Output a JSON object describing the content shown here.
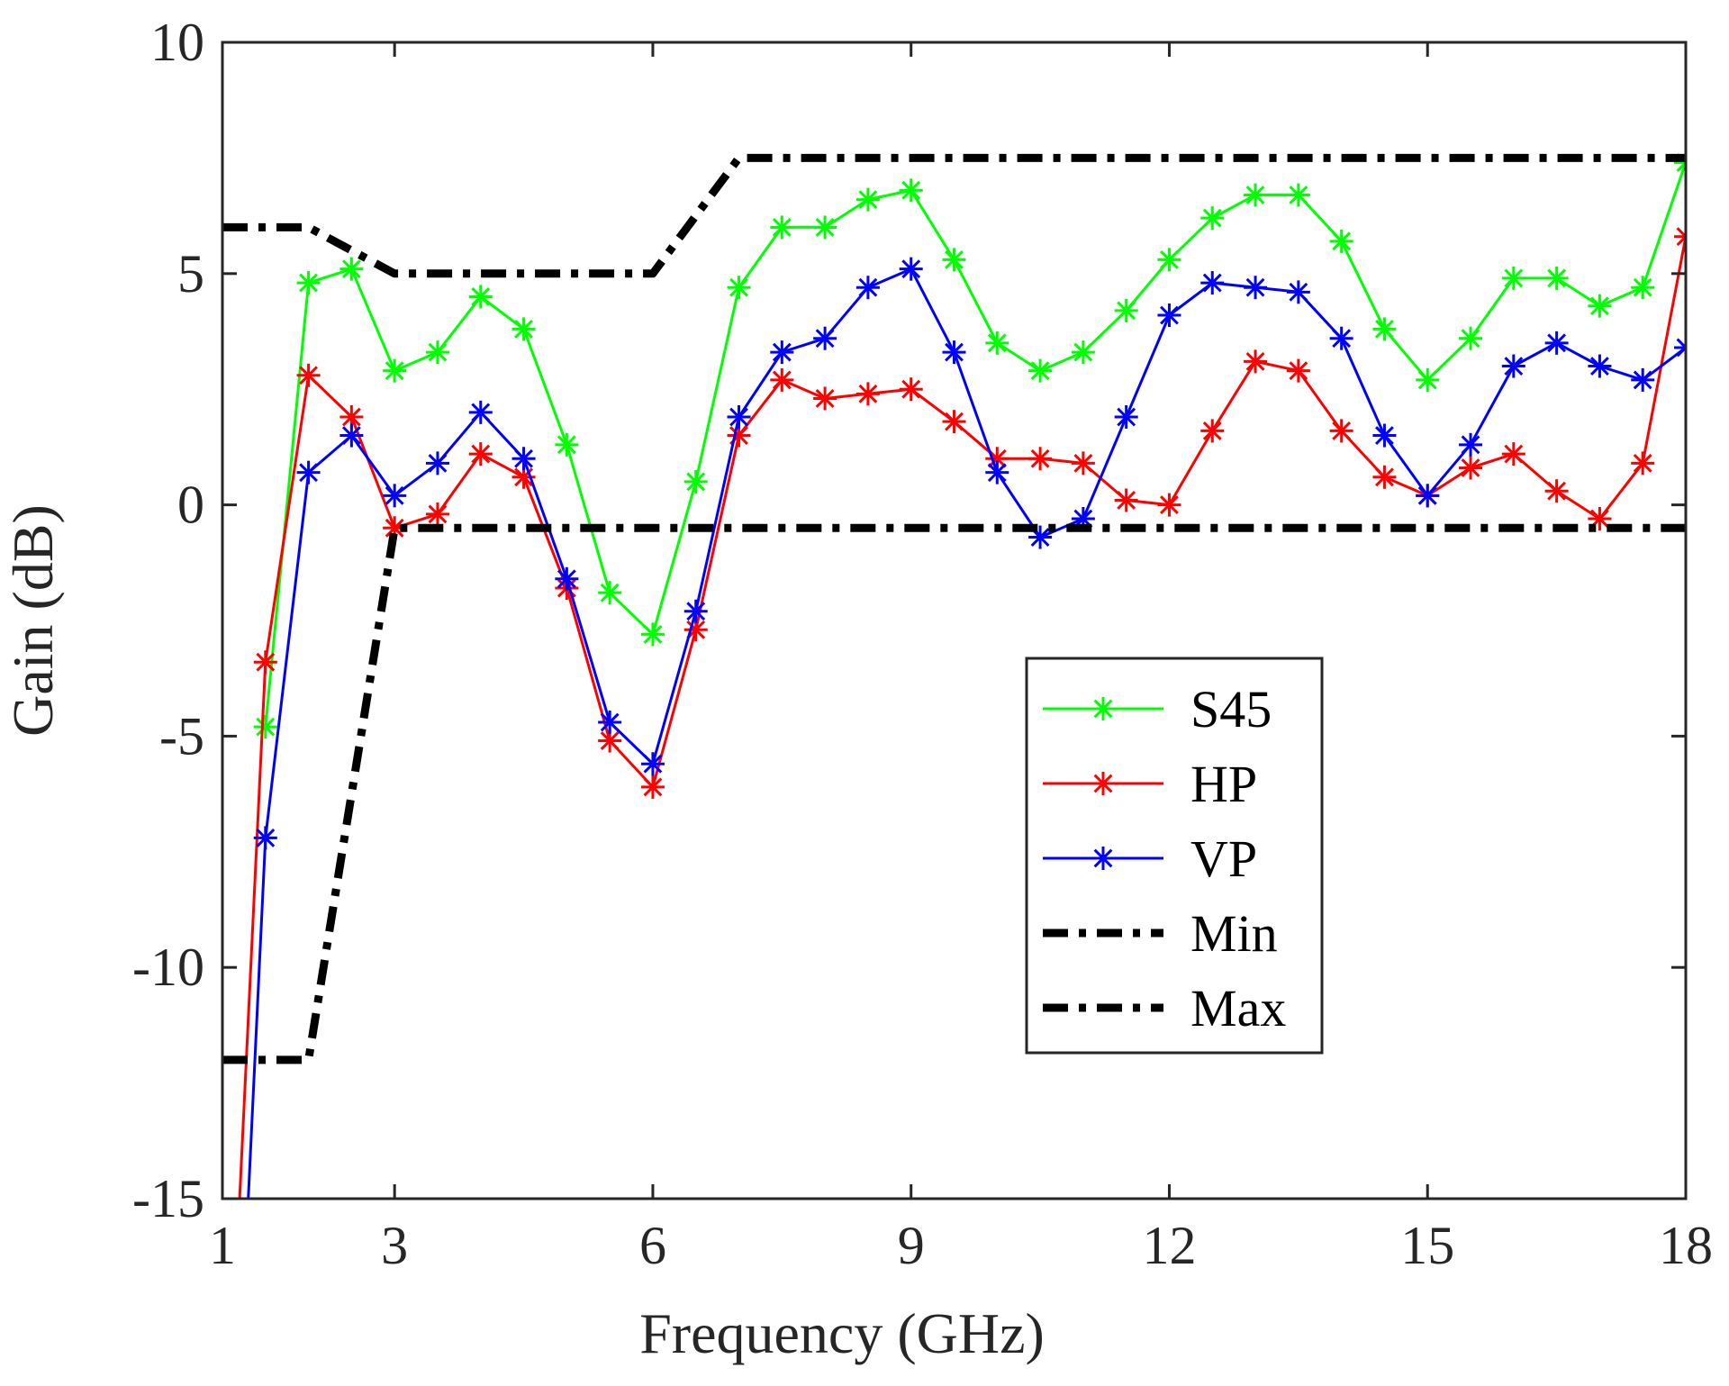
{
  "chart_data": {
    "type": "line",
    "title": "",
    "xlabel": "Frequency (GHz)",
    "ylabel": "Gain (dB)",
    "xlim": [
      1,
      18
    ],
    "ylim": [
      -15,
      10
    ],
    "xticks": [
      "1",
      "3",
      "6",
      "9",
      "12",
      "15",
      "18"
    ],
    "yticks": [
      "10",
      "5",
      "0",
      "-5",
      "-10",
      "-15"
    ],
    "grid": false,
    "legend": "center-right",
    "series": [
      {
        "name": "S45",
        "color": "#00ff00",
        "style": "solid",
        "marker": "asterisk",
        "x": [
          1.5,
          2,
          2.5,
          3,
          3.5,
          4,
          4.5,
          5,
          5.5,
          6,
          6.5,
          7,
          7.5,
          8,
          8.5,
          9,
          9.5,
          10,
          10.5,
          11,
          11.5,
          12,
          12.5,
          13,
          13.5,
          14,
          14.5,
          15,
          15.5,
          16,
          16.5,
          17,
          17.5,
          18
        ],
        "y": [
          -4.8,
          4.8,
          5.1,
          2.9,
          3.3,
          4.5,
          3.8,
          1.3,
          -1.9,
          -2.8,
          0.5,
          4.7,
          6.0,
          6.0,
          6.6,
          6.8,
          5.3,
          3.5,
          2.9,
          3.3,
          4.2,
          5.3,
          6.2,
          6.7,
          6.7,
          5.7,
          3.8,
          2.7,
          3.6,
          4.9,
          4.9,
          4.3,
          4.7,
          7.4
        ]
      },
      {
        "name": "HP",
        "color": "#ff0000",
        "style": "solid",
        "marker": "asterisk",
        "x": [
          1.2,
          1.5,
          2,
          2.5,
          3,
          3.5,
          4,
          4.5,
          5,
          5.5,
          6,
          6.5,
          7,
          7.5,
          8,
          8.5,
          9,
          9.5,
          10,
          10.5,
          11,
          11.5,
          12,
          12.5,
          13,
          13.5,
          14,
          14.5,
          15,
          15.5,
          16,
          16.5,
          17,
          17.5,
          18
        ],
        "y": [
          -15,
          -3.4,
          2.8,
          1.9,
          -0.5,
          -0.2,
          1.1,
          0.6,
          -1.8,
          -5.1,
          -6.1,
          -2.7,
          1.5,
          2.7,
          2.3,
          2.4,
          2.5,
          1.8,
          1.0,
          1.0,
          0.9,
          0.1,
          0.0,
          1.6,
          3.1,
          2.9,
          1.6,
          0.6,
          0.2,
          0.8,
          1.1,
          0.3,
          -0.3,
          0.9,
          5.8
        ]
      },
      {
        "name": "VP",
        "color": "#0000ff",
        "style": "solid",
        "marker": "asterisk",
        "x": [
          1.3,
          1.5,
          2,
          2.5,
          3,
          3.5,
          4,
          4.5,
          5,
          5.5,
          6,
          6.5,
          7,
          7.5,
          8,
          8.5,
          9,
          9.5,
          10,
          10.5,
          11,
          11.5,
          12,
          12.5,
          13,
          13.5,
          14,
          14.5,
          15,
          15.5,
          16,
          16.5,
          17,
          17.5,
          18
        ],
        "y": [
          -15,
          -7.2,
          0.7,
          1.5,
          0.2,
          0.9,
          2.0,
          1.0,
          -1.6,
          -4.7,
          -5.6,
          -2.3,
          1.9,
          3.3,
          3.6,
          4.7,
          5.1,
          3.3,
          0.7,
          -0.7,
          -0.3,
          1.9,
          4.1,
          4.8,
          4.7,
          4.6,
          3.6,
          1.5,
          0.2,
          1.3,
          3.0,
          3.5,
          3.0,
          2.7,
          3.4
        ]
      },
      {
        "name": "Min",
        "color": "#000000",
        "style": "dashdot",
        "marker": "none",
        "x": [
          1,
          2,
          3,
          18
        ],
        "y": [
          -12,
          -12,
          -0.5,
          -0.5
        ]
      },
      {
        "name": "Max",
        "color": "#000000",
        "style": "dashdot",
        "marker": "none",
        "x": [
          1,
          2,
          3,
          6,
          7,
          18
        ],
        "y": [
          6,
          6,
          5,
          5,
          7.5,
          7.5
        ]
      }
    ]
  }
}
